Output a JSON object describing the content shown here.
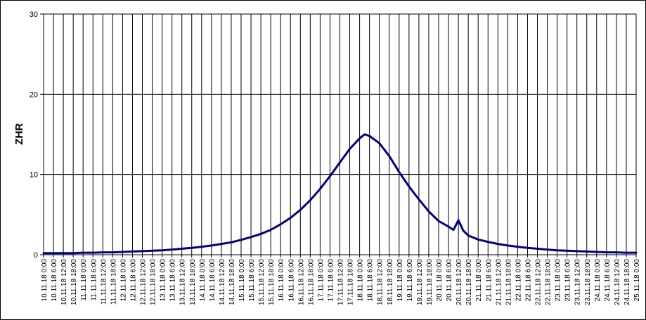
{
  "chart_data": {
    "type": "line",
    "title": "",
    "xlabel": "",
    "ylabel": "ZHR",
    "ylim": [
      0,
      30
    ],
    "yticks": [
      0,
      10,
      20,
      30
    ],
    "grid": true,
    "legend": "none",
    "line_color": "#000080",
    "x_categories": [
      "10.11.18 0:00",
      "10.11.18 6:00",
      "10.11.18 12:00",
      "10.11.18 18:00",
      "11.11.18 0:00",
      "11.11.18 6:00",
      "11.11.18 12:00",
      "11.11.18 18:00",
      "12.11.18 0:00",
      "12.11.18 6:00",
      "12.11.18 12:00",
      "12.11.18 18:00",
      "13.11.18 0:00",
      "13.11.18 6:00",
      "13.11.18 12:00",
      "13.11.18 18:00",
      "14.11.18 0:00",
      "14.11.18 6:00",
      "14.11.18 12:00",
      "14.11.18 18:00",
      "15.11.18 0:00",
      "15.11.18 6:00",
      "15.11.18 12:00",
      "15.11.18 18:00",
      "16.11.18 0:00",
      "16.11.18 6:00",
      "16.11.18 12:00",
      "16.11.18 18:00",
      "17.11.18 0:00",
      "17.11.18 6:00",
      "17.11.18 12:00",
      "17.11.18 18:00",
      "18.11.18 0:00",
      "18.11.18 6:00",
      "18.11.18 12:00",
      "18.11.18 18:00",
      "19.11.18 0:00",
      "19.11.18 6:00",
      "19.11.18 12:00",
      "19.11.18 18:00",
      "20.11.18 0:00",
      "20.11.18 6:00",
      "20.11.18 12:00",
      "20.11.18 18:00",
      "21.11.18 0:00",
      "21.11.18 6:00",
      "21.11.18 12:00",
      "21.11.18 18:00",
      "22.11.18 0:00",
      "22.11.18 6:00",
      "22.11.18 12:00",
      "22.11.18 18:00",
      "23.11.18 0:00",
      "23.11.18 6:00",
      "23.11.18 12:00",
      "23.11.18 18:00",
      "24.11.18 0:00",
      "24.11.18 6:00",
      "24.11.18 12:00",
      "24.11.18 18:00",
      "25.11.18 0:00"
    ],
    "series": [
      {
        "name": "",
        "points": [
          {
            "x": "10.11.18 0:00",
            "y": 0.2
          },
          {
            "x": "10.11.18 6:00",
            "y": 0.2
          },
          {
            "x": "10.11.18 12:00",
            "y": 0.2
          },
          {
            "x": "10.11.18 18:00",
            "y": 0.2
          },
          {
            "x": "11.11.18 0:00",
            "y": 0.25
          },
          {
            "x": "11.11.18 6:00",
            "y": 0.25
          },
          {
            "x": "11.11.18 12:00",
            "y": 0.3
          },
          {
            "x": "11.11.18 18:00",
            "y": 0.3
          },
          {
            "x": "12.11.18 0:00",
            "y": 0.35
          },
          {
            "x": "12.11.18 6:00",
            "y": 0.4
          },
          {
            "x": "12.11.18 12:00",
            "y": 0.45
          },
          {
            "x": "12.11.18 18:00",
            "y": 0.5
          },
          {
            "x": "13.11.18 0:00",
            "y": 0.55
          },
          {
            "x": "13.11.18 6:00",
            "y": 0.65
          },
          {
            "x": "13.11.18 12:00",
            "y": 0.75
          },
          {
            "x": "13.11.18 18:00",
            "y": 0.85
          },
          {
            "x": "14.11.18 0:00",
            "y": 1.0
          },
          {
            "x": "14.11.18 6:00",
            "y": 1.15
          },
          {
            "x": "14.11.18 12:00",
            "y": 1.35
          },
          {
            "x": "14.11.18 18:00",
            "y": 1.55
          },
          {
            "x": "15.11.18 0:00",
            "y": 1.85
          },
          {
            "x": "15.11.18 6:00",
            "y": 2.2
          },
          {
            "x": "15.11.18 12:00",
            "y": 2.6
          },
          {
            "x": "15.11.18 18:00",
            "y": 3.1
          },
          {
            "x": "16.11.18 0:00",
            "y": 3.8
          },
          {
            "x": "16.11.18 6:00",
            "y": 4.6
          },
          {
            "x": "16.11.18 12:00",
            "y": 5.6
          },
          {
            "x": "16.11.18 18:00",
            "y": 6.8
          },
          {
            "x": "17.11.18 0:00",
            "y": 8.2
          },
          {
            "x": "17.11.18 6:00",
            "y": 9.8
          },
          {
            "x": "17.11.18 12:00",
            "y": 11.5
          },
          {
            "x": "17.11.18 18:00",
            "y": 13.2
          },
          {
            "x": "18.11.18 0:00",
            "y": 14.5
          },
          {
            "x": "18.11.18 3:00",
            "y": 15.0
          },
          {
            "x": "18.11.18 6:00",
            "y": 14.8
          },
          {
            "x": "18.11.18 12:00",
            "y": 13.9
          },
          {
            "x": "18.11.18 18:00",
            "y": 12.3
          },
          {
            "x": "19.11.18 0:00",
            "y": 10.3
          },
          {
            "x": "19.11.18 6:00",
            "y": 8.5
          },
          {
            "x": "19.11.18 12:00",
            "y": 6.9
          },
          {
            "x": "19.11.18 18:00",
            "y": 5.4
          },
          {
            "x": "20.11.18 0:00",
            "y": 4.2
          },
          {
            "x": "20.11.18 6:00",
            "y": 3.5
          },
          {
            "x": "20.11.18 9:00",
            "y": 3.1
          },
          {
            "x": "20.11.18 12:00",
            "y": 4.3
          },
          {
            "x": "20.11.18 15:00",
            "y": 3.0
          },
          {
            "x": "20.11.18 18:00",
            "y": 2.4
          },
          {
            "x": "21.11.18 0:00",
            "y": 1.9
          },
          {
            "x": "21.11.18 6:00",
            "y": 1.6
          },
          {
            "x": "21.11.18 12:00",
            "y": 1.35
          },
          {
            "x": "21.11.18 18:00",
            "y": 1.15
          },
          {
            "x": "22.11.18 0:00",
            "y": 1.0
          },
          {
            "x": "22.11.18 6:00",
            "y": 0.85
          },
          {
            "x": "22.11.18 12:00",
            "y": 0.75
          },
          {
            "x": "22.11.18 18:00",
            "y": 0.65
          },
          {
            "x": "23.11.18 0:00",
            "y": 0.55
          },
          {
            "x": "23.11.18 6:00",
            "y": 0.5
          },
          {
            "x": "23.11.18 12:00",
            "y": 0.45
          },
          {
            "x": "23.11.18 18:00",
            "y": 0.4
          },
          {
            "x": "24.11.18 0:00",
            "y": 0.35
          },
          {
            "x": "24.11.18 6:00",
            "y": 0.3
          },
          {
            "x": "24.11.18 12:00",
            "y": 0.3
          },
          {
            "x": "24.11.18 18:00",
            "y": 0.25
          },
          {
            "x": "25.11.18 0:00",
            "y": 0.25
          }
        ]
      }
    ]
  }
}
